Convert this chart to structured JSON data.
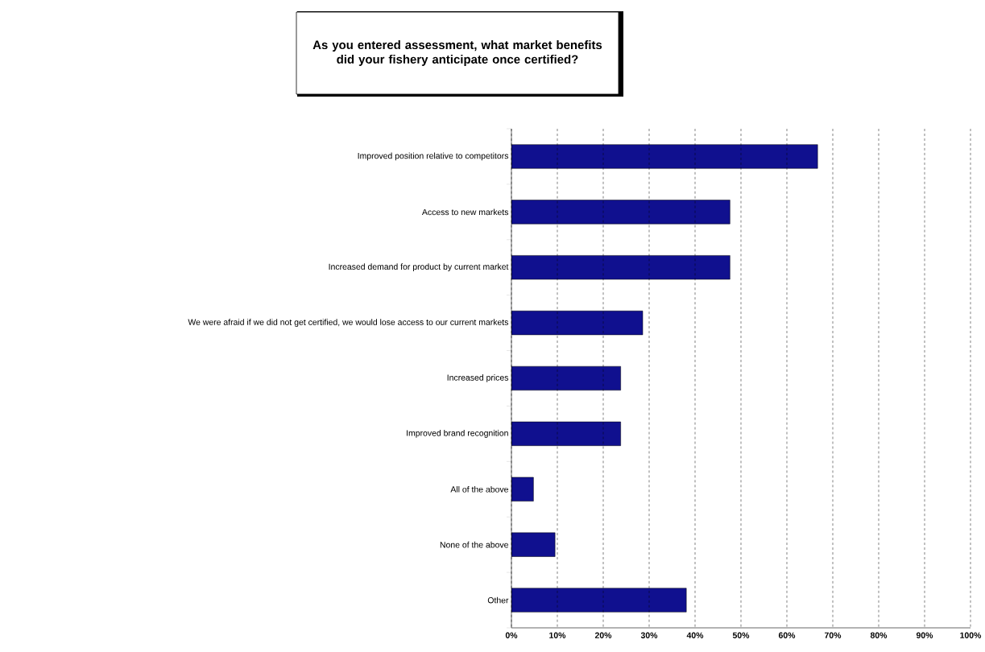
{
  "chart_data": {
    "type": "bar",
    "orientation": "horizontal",
    "title": "As you entered assessment, what market benefits did your fishery anticipate once certified?",
    "categories": [
      "Improved position relative to competitors",
      "Access to new markets",
      "Increased demand for product by current market",
      "We were afraid if we did not get certified, we would lose access to our current markets",
      "Increased prices",
      "Improved brand recognition",
      "All of the above",
      "None of the above",
      "Other"
    ],
    "values": [
      66.7,
      47.6,
      47.6,
      28.6,
      23.8,
      23.8,
      4.8,
      9.5,
      38.1
    ],
    "color": "#10108f",
    "xlim": [
      0,
      100
    ],
    "xticks": [
      {
        "value": 0,
        "label": "0%"
      },
      {
        "value": 10,
        "label": "10%"
      },
      {
        "value": 20,
        "label": "20%"
      },
      {
        "value": 30,
        "label": "30%"
      },
      {
        "value": 40,
        "label": "40%"
      },
      {
        "value": 50,
        "label": "50%"
      },
      {
        "value": 60,
        "label": "60%"
      },
      {
        "value": 70,
        "label": "70%"
      },
      {
        "value": 80,
        "label": "80%"
      },
      {
        "value": 90,
        "label": "90%"
      },
      {
        "value": 100,
        "label": "100%"
      }
    ],
    "grid": "x"
  }
}
